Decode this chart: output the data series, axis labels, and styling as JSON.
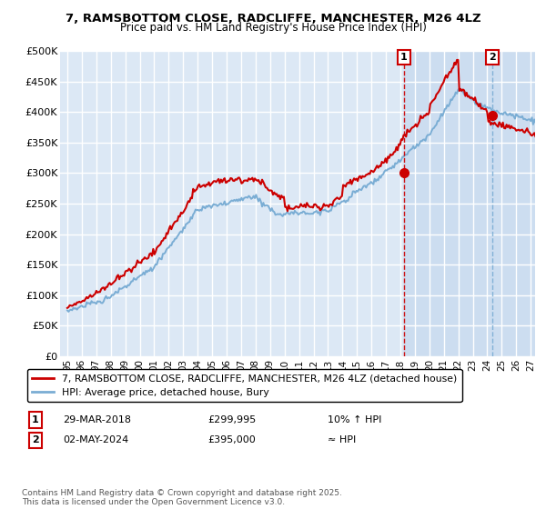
{
  "title1": "7, RAMSBOTTOM CLOSE, RADCLIFFE, MANCHESTER, M26 4LZ",
  "title2": "Price paid vs. HM Land Registry's House Price Index (HPI)",
  "ylabel_ticks": [
    "£0",
    "£50K",
    "£100K",
    "£150K",
    "£200K",
    "£250K",
    "£300K",
    "£350K",
    "£400K",
    "£450K",
    "£500K"
  ],
  "ytick_values": [
    0,
    50000,
    100000,
    150000,
    200000,
    250000,
    300000,
    350000,
    400000,
    450000,
    500000
  ],
  "ylim": [
    0,
    500000
  ],
  "xlim_start": 1994.5,
  "xlim_end": 2027.3,
  "xtick_years": [
    1995,
    1996,
    1997,
    1998,
    1999,
    2000,
    2001,
    2002,
    2003,
    2004,
    2005,
    2006,
    2007,
    2008,
    2009,
    2010,
    2011,
    2012,
    2013,
    2014,
    2015,
    2016,
    2017,
    2018,
    2019,
    2020,
    2021,
    2022,
    2023,
    2024,
    2025,
    2026,
    2027
  ],
  "red_color": "#cc0000",
  "blue_color": "#7aadd4",
  "bg_color": "#dce8f5",
  "bg_shade_color": "#ccddf0",
  "grid_color": "#ffffff",
  "marker1_x": 2018.25,
  "marker1_y": 299995,
  "marker1_label": "1",
  "marker2_x": 2024.35,
  "marker2_y": 395000,
  "marker2_label": "2",
  "vline1_x": 2018.25,
  "vline2_x": 2024.35,
  "legend_red_label": "7, RAMSBOTTOM CLOSE, RADCLIFFE, MANCHESTER, M26 4LZ (detached house)",
  "legend_blue_label": "HPI: Average price, detached house, Bury",
  "ann1_box": "1",
  "ann1_date": "29-MAR-2018",
  "ann1_price": "£299,995",
  "ann1_hpi": "10% ↑ HPI",
  "ann2_box": "2",
  "ann2_date": "02-MAY-2024",
  "ann2_price": "£395,000",
  "ann2_hpi": "≈ HPI",
  "copyright_text": "Contains HM Land Registry data © Crown copyright and database right 2025.\nThis data is licensed under the Open Government Licence v3.0.",
  "figsize": [
    6.0,
    5.6
  ],
  "dpi": 100
}
